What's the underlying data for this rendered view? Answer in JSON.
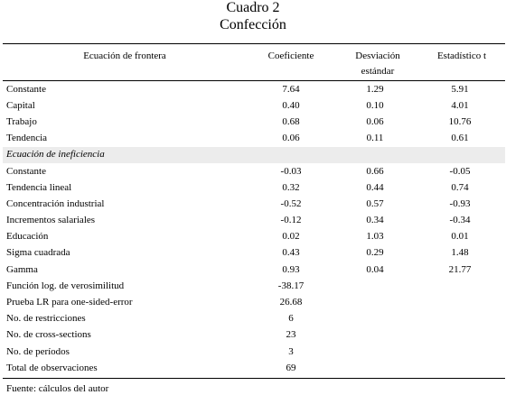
{
  "title": {
    "line1": "Cuadro 2",
    "line2": "Confección"
  },
  "headers": {
    "col0": "Ecuación de frontera",
    "col1": "Coeficiente",
    "col2_line1": "Desviación",
    "col2_line2": "estándar",
    "col3": "Estadístico t"
  },
  "rows": [
    {
      "label": "Constante",
      "coef": "7.64",
      "sd": "1.29",
      "t": "5.91"
    },
    {
      "label": "Capital",
      "coef": "0.40",
      "sd": "0.10",
      "t": "4.01"
    },
    {
      "label": "Trabajo",
      "coef": "0.68",
      "sd": "0.06",
      "t": "10.76"
    },
    {
      "label": "Tendencia",
      "coef": "0.06",
      "sd": "0.11",
      "t": "0.61"
    },
    {
      "label": "Ecuación de ineficiencia",
      "coef": "",
      "sd": "",
      "t": ""
    },
    {
      "label": "Constante",
      "coef": "-0.03",
      "sd": "0.66",
      "t": "-0.05"
    },
    {
      "label": "Tendencia lineal",
      "coef": "0.32",
      "sd": "0.44",
      "t": "0.74"
    },
    {
      "label": "Concentración industrial",
      "coef": "-0.52",
      "sd": "0.57",
      "t": "-0.93"
    },
    {
      "label": "Incrementos salariales",
      "coef": "-0.12",
      "sd": "0.34",
      "t": "-0.34"
    },
    {
      "label": "Educación",
      "coef": "0.02",
      "sd": "1.03",
      "t": "0.01"
    },
    {
      "label": "Sigma cuadrada",
      "coef": "0.43",
      "sd": "0.29",
      "t": "1.48"
    },
    {
      "label": "Gamma",
      "coef": "0.93",
      "sd": "0.04",
      "t": "21.77"
    },
    {
      "label": "Función log. de verosimilitud",
      "coef": "-38.17",
      "sd": "",
      "t": ""
    },
    {
      "label": "Prueba LR para one-sided-error",
      "coef": "26.68",
      "sd": "",
      "t": ""
    },
    {
      "label": "No. de restricciones",
      "coef": "6",
      "sd": "",
      "t": ""
    },
    {
      "label": "No. de cross-sections",
      "coef": "23",
      "sd": "",
      "t": ""
    },
    {
      "label": "No. de períodos",
      "coef": "3",
      "sd": "",
      "t": ""
    },
    {
      "label": "Total de observaciones",
      "coef": "69",
      "sd": "",
      "t": ""
    }
  ],
  "source": "Fuente: cálculos del autor"
}
